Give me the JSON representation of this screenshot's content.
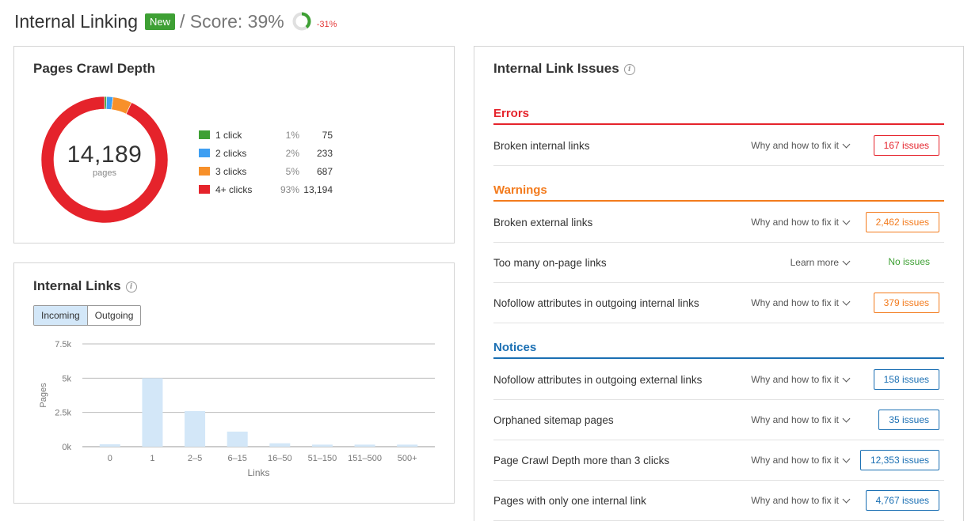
{
  "header": {
    "title": "Internal Linking",
    "badge": "New",
    "score_text": "/ Score: 39%",
    "score_value": 39,
    "delta": "-31%",
    "colors": {
      "badge": "#3ea034",
      "score_ring": "#3ea034",
      "delta": "#e43a3a"
    }
  },
  "crawl_depth": {
    "title": "Pages Crawl Depth",
    "total": "14,189",
    "total_label": "pages",
    "items": [
      {
        "label": "1 click",
        "pct": "1%",
        "value": "75",
        "share": 75,
        "color": "#3ea034"
      },
      {
        "label": "2 clicks",
        "pct": "2%",
        "value": "233",
        "share": 233,
        "color": "#3e9ff2"
      },
      {
        "label": "3 clicks",
        "pct": "5%",
        "value": "687",
        "share": 687,
        "color": "#f7902a"
      },
      {
        "label": "4+ clicks",
        "pct": "93%",
        "value": "13,194",
        "share": 13194,
        "color": "#e5232b"
      }
    ]
  },
  "internal_links": {
    "title": "Internal Links",
    "tabs": [
      {
        "label": "Incoming",
        "active": true
      },
      {
        "label": "Outgoing",
        "active": false
      }
    ]
  },
  "chart_data": {
    "type": "bar",
    "categories": [
      "0",
      "1",
      "2–5",
      "6–15",
      "16–50",
      "51–150",
      "151–500",
      "500+"
    ],
    "values": [
      180,
      5000,
      2600,
      1100,
      250,
      150,
      150,
      150
    ],
    "xlabel": "Links",
    "ylabel": "Pages",
    "yticks": [
      "0k",
      "2.5k",
      "5k",
      "7.5k"
    ],
    "ylim": [
      0,
      7500
    ],
    "grid": true,
    "color": "#d3e7f8"
  },
  "issues": {
    "title": "Internal Link Issues",
    "sections": [
      {
        "name": "Errors",
        "kind": "err",
        "rows": [
          {
            "name": "Broken internal links",
            "help": "Why and how to fix it",
            "badge": "167 issues",
            "tone": "red"
          }
        ]
      },
      {
        "name": "Warnings",
        "kind": "warn",
        "rows": [
          {
            "name": "Broken external links",
            "help": "Why and how to fix it",
            "badge": "2,462 issues",
            "tone": "orange"
          },
          {
            "name": "Too many on-page links",
            "help": "Learn more",
            "badge": "No issues",
            "tone": "none"
          },
          {
            "name": "Nofollow attributes in outgoing internal links",
            "help": "Why and how to fix it",
            "badge": "379 issues",
            "tone": "orange"
          }
        ]
      },
      {
        "name": "Notices",
        "kind": "note",
        "rows": [
          {
            "name": "Nofollow attributes in outgoing external links",
            "help": "Why and how to fix it",
            "badge": "158 issues",
            "tone": "blue"
          },
          {
            "name": "Orphaned sitemap pages",
            "help": "Why and how to fix it",
            "badge": "35 issues",
            "tone": "blue"
          },
          {
            "name": "Page Crawl Depth more than 3 clicks",
            "help": "Why and how to fix it",
            "badge": "12,353 issues",
            "tone": "blue"
          },
          {
            "name": "Pages with only one internal link",
            "help": "Why and how to fix it",
            "badge": "4,767 issues",
            "tone": "blue"
          }
        ]
      }
    ]
  }
}
